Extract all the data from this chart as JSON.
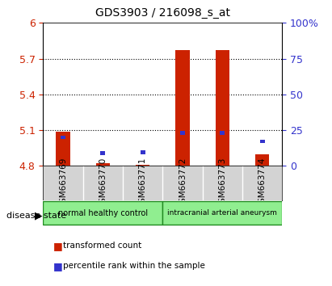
{
  "title": "GDS3903 / 216098_s_at",
  "samples": [
    "GSM663769",
    "GSM663770",
    "GSM663771",
    "GSM663772",
    "GSM663773",
    "GSM663774"
  ],
  "transformed_count": [
    5.09,
    4.82,
    4.81,
    5.77,
    5.77,
    4.9
  ],
  "percentile_rank": [
    20.0,
    9.0,
    9.5,
    23.0,
    23.0,
    17.0
  ],
  "ylim_left": [
    4.8,
    6.0
  ],
  "yticks_left": [
    4.8,
    5.1,
    5.4,
    5.7,
    6.0
  ],
  "ytick_labels_left": [
    "4.8",
    "5.1",
    "5.4",
    "5.7",
    "6"
  ],
  "ylim_right": [
    0,
    100
  ],
  "yticks_right": [
    0,
    25,
    50,
    75,
    100
  ],
  "ytick_labels_right": [
    "0",
    "25",
    "50",
    "75",
    "100%"
  ],
  "disease_groups": [
    {
      "label": "normal healthy control",
      "samples": [
        0,
        1,
        2
      ],
      "color": "#90EE90"
    },
    {
      "label": "intracranial arterial aneurysm",
      "samples": [
        3,
        4,
        5
      ],
      "color": "#90EE90"
    }
  ],
  "disease_state_label": "disease state",
  "bar_color_red": "#CC2200",
  "bar_color_blue": "#3333CC",
  "bar_width": 0.35,
  "blue_bar_width": 0.12,
  "base_value": 4.8,
  "legend_red": "transformed count",
  "legend_blue": "percentile rank within the sample",
  "grid_color": "#000000",
  "background_color": "#FFFFFF",
  "plot_bg_color": "#FFFFFF",
  "xticklabel_fontsize": 7.5,
  "yticklabel_fontsize_left": 9,
  "yticklabel_fontsize_right": 9
}
